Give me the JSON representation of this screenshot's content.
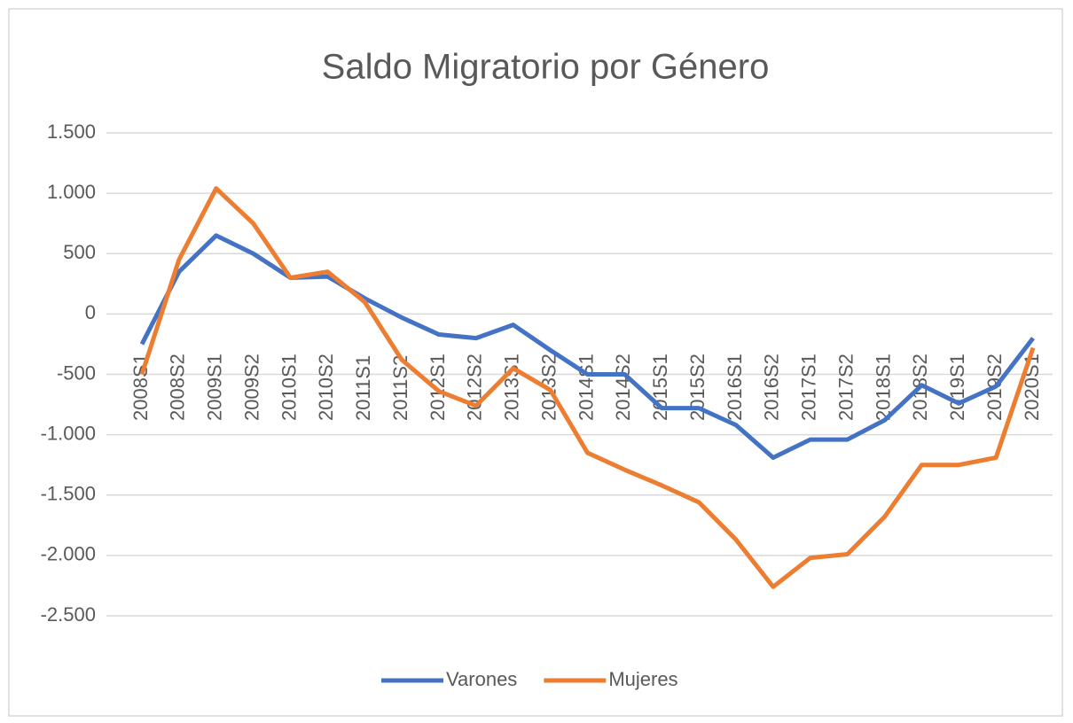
{
  "chart_data": {
    "type": "line",
    "title": "Saldo Migratorio por Género",
    "categories": [
      "2008S1",
      "2008S2",
      "2009S1",
      "2009S2",
      "2010S1",
      "2010S2",
      "2011S1",
      "2011S2",
      "2012S1",
      "2012S2",
      "2013S1",
      "2013S2",
      "2014S1",
      "2014S2",
      "2015S1",
      "2015S2",
      "2016S1",
      "2016S2",
      "2017S1",
      "2017S2",
      "2018S1",
      "2018S2",
      "2019S1",
      "2019S2",
      "2020S1"
    ],
    "series": [
      {
        "name": "Varones",
        "color": "#4472c4",
        "values": [
          -250,
          350,
          650,
          500,
          300,
          310,
          130,
          -30,
          -170,
          -200,
          -90,
          -300,
          -500,
          -500,
          -780,
          -780,
          -920,
          -1190,
          -1040,
          -1040,
          -880,
          -590,
          -740,
          -600,
          -200
        ]
      },
      {
        "name": "Mujeres",
        "color": "#ed7d31",
        "values": [
          -500,
          450,
          1040,
          750,
          300,
          350,
          100,
          -380,
          -640,
          -760,
          -450,
          -630,
          -1150,
          -1290,
          -1420,
          -1560,
          -1870,
          -2260,
          -2020,
          -1990,
          -1680,
          -1250,
          -1250,
          -1190,
          -280
        ]
      }
    ],
    "ylim": [
      -2500,
      1500
    ],
    "yticks": [
      {
        "value": 1500,
        "label": "1.500"
      },
      {
        "value": 1000,
        "label": "1.000"
      },
      500,
      0,
      -500,
      {
        "value": -1000,
        "label": "-1.000"
      },
      {
        "value": -1500,
        "label": "-1.500"
      },
      {
        "value": -2000,
        "label": "-2.000"
      },
      {
        "value": -2500,
        "label": "-2.500"
      }
    ],
    "grid": true,
    "legend": "bottom"
  }
}
